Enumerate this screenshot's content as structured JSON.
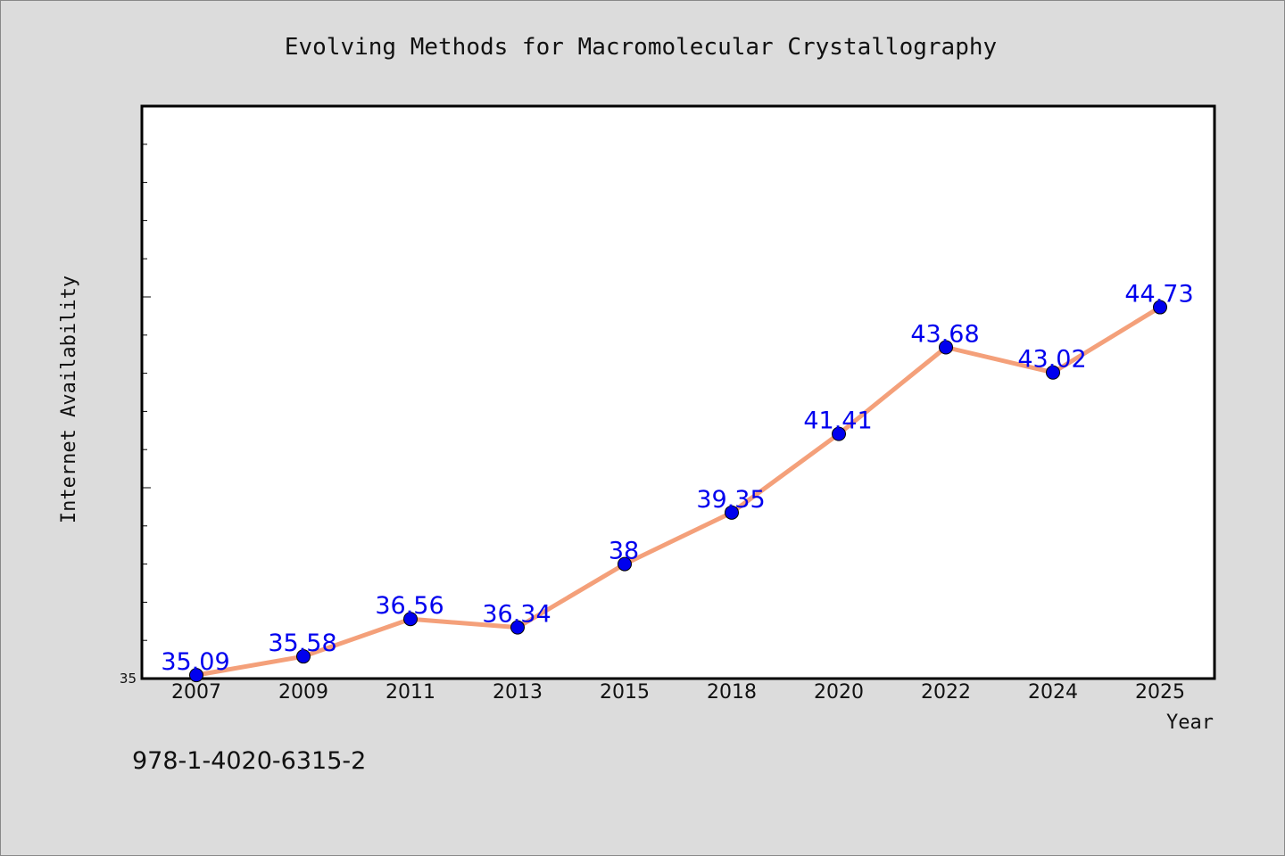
{
  "chart_data": {
    "type": "line",
    "title": "Evolving Methods for Macromolecular Crystallography",
    "xlabel": "Year",
    "ylabel": "Internet Availability",
    "categories": [
      "2007",
      "2009",
      "2011",
      "2013",
      "2015",
      "2018",
      "2020",
      "2022",
      "2024",
      "2025"
    ],
    "values": [
      35.09,
      35.58,
      36.56,
      36.34,
      38,
      39.35,
      41.41,
      43.68,
      43.02,
      44.73
    ],
    "data_labels": [
      "35.09",
      "35.58",
      "36.56",
      "36.34",
      "38",
      "39.35",
      "41.41",
      "43.68",
      "43.02",
      "44.73"
    ],
    "ylim": [
      35,
      50
    ],
    "y_tick_labels": [
      "35"
    ],
    "line_color": "#f4a07a",
    "marker_color": "#0000ee",
    "label_color": "#0000ee",
    "grid": false,
    "legend": "none"
  },
  "footer_text": "978-1-4020-6315-2"
}
